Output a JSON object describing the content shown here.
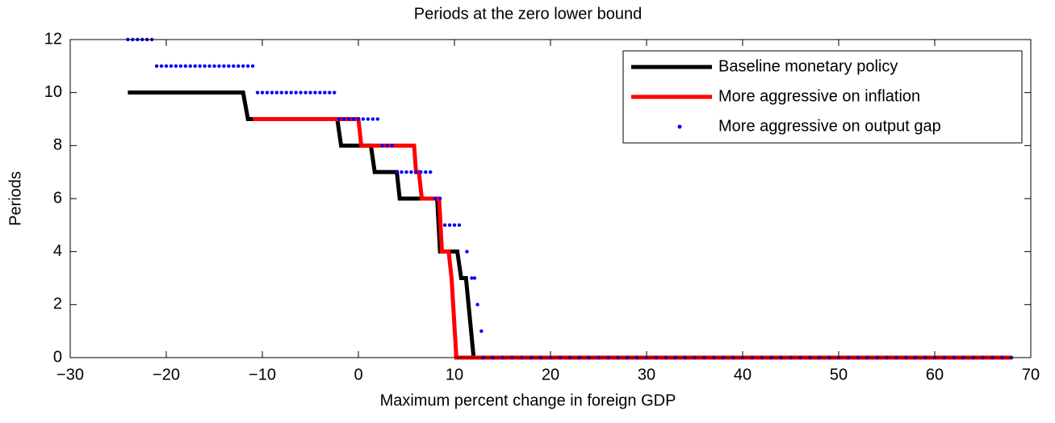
{
  "chart_data": {
    "type": "line",
    "title": "Periods at the zero lower bound",
    "x_label": "Maximum percent change in foreign GDP",
    "y_label": "Periods",
    "xlim": [
      -30,
      70
    ],
    "xticks": [
      {
        "value": -30,
        "label": "−30"
      },
      {
        "value": -20,
        "label": "−20"
      },
      {
        "value": -10,
        "label": "−10"
      },
      0,
      10,
      20,
      30,
      40,
      50,
      60,
      70
    ],
    "ylim": [
      0,
      12
    ],
    "yticks": [
      0,
      2,
      4,
      6,
      8,
      10,
      12
    ],
    "legend": "upper right",
    "series": [
      {
        "name": "Baseline monetary policy",
        "color": "#000000",
        "mode": "line",
        "x": [
          -24,
          -12,
          -11.5,
          -2.2,
          -1.8,
          1.3,
          1.7,
          4,
          4.3,
          8.2,
          8.5,
          10.3,
          10.7,
          11.2,
          12,
          68
        ],
        "values": [
          10,
          10,
          9,
          9,
          8,
          8,
          7,
          7,
          6,
          6,
          4,
          4,
          3,
          3,
          0,
          0
        ]
      },
      {
        "name": "More aggressive on inflation",
        "color": "#ff0000",
        "mode": "line",
        "x": [
          -11,
          0,
          0.3,
          5.8,
          6.0,
          6.3,
          6.6,
          8.4,
          8.7,
          9.4,
          9.7,
          10.2,
          68
        ],
        "values": [
          9,
          9,
          8,
          8,
          7,
          7,
          6,
          6,
          4,
          4,
          3,
          0,
          0
        ]
      },
      {
        "name": "More aggressive on output gap",
        "color": "#0000ff",
        "mode": "markers",
        "x": [
          -24,
          -23.5,
          -23,
          -22.5,
          -22,
          -21.5,
          -21,
          -20.5,
          -20,
          -19.5,
          -19,
          -18.5,
          -18,
          -17.5,
          -17,
          -16.5,
          -16,
          -15.5,
          -15,
          -14.5,
          -14,
          -13.5,
          -13,
          -12.5,
          -12,
          -11.5,
          -11,
          -10.5,
          -10,
          -9.5,
          -9,
          -8.5,
          -8,
          -7.5,
          -7,
          -6.5,
          -6,
          -5.5,
          -5,
          -4.5,
          -4,
          -3.5,
          -3,
          -2.5,
          -2,
          -1.5,
          -1,
          -0.5,
          0,
          0.5,
          1,
          1.5,
          2,
          2.5,
          3,
          3.5,
          4,
          4.5,
          5,
          5.5,
          6,
          6.5,
          7,
          7.5,
          8,
          8.5,
          9,
          9.5,
          10,
          10.5,
          11.3,
          11.8,
          12.1,
          12.4,
          12.8,
          13,
          14,
          15,
          16,
          17,
          18,
          19,
          20,
          21,
          22,
          23,
          24,
          25,
          26,
          27,
          28,
          29,
          30,
          31,
          32,
          33,
          34,
          35,
          36,
          37,
          38,
          39,
          40,
          41,
          42,
          43,
          44,
          45,
          46,
          47,
          48,
          49,
          50,
          51,
          52,
          53,
          54,
          55,
          56,
          57,
          58,
          59,
          60,
          61,
          62,
          63,
          64,
          65,
          66,
          67,
          68
        ],
        "values": [
          12,
          12,
          12,
          12,
          12,
          12,
          11,
          11,
          11,
          11,
          11,
          11,
          11,
          11,
          11,
          11,
          11,
          11,
          11,
          11,
          11,
          11,
          11,
          11,
          11,
          11,
          11,
          10,
          10,
          10,
          10,
          10,
          10,
          10,
          10,
          10,
          10,
          10,
          10,
          10,
          10,
          10,
          10,
          10,
          9,
          9,
          9,
          9,
          9,
          9,
          9,
          9,
          9,
          8,
          8,
          8,
          7,
          7,
          7,
          7,
          7,
          7,
          7,
          7,
          6,
          6,
          5,
          5,
          5,
          5,
          4,
          3,
          3,
          2,
          1,
          0,
          0,
          0,
          0,
          0,
          0,
          0,
          0,
          0,
          0,
          0,
          0,
          0,
          0,
          0,
          0,
          0,
          0,
          0,
          0,
          0,
          0,
          0,
          0,
          0,
          0,
          0,
          0,
          0,
          0,
          0,
          0,
          0,
          0,
          0,
          0,
          0,
          0,
          0,
          0,
          0,
          0,
          0,
          0,
          0,
          0,
          0,
          0,
          0,
          0,
          0,
          0,
          0,
          0,
          0,
          0
        ]
      }
    ]
  }
}
